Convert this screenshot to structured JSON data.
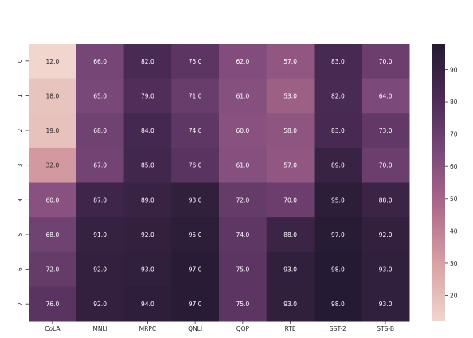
{
  "chart_data": {
    "type": "heatmap",
    "x_categories": [
      "CoLA",
      "MNLI",
      "MRPC",
      "QNLI",
      "QQP",
      "RTE",
      "SST-2",
      "STS-B"
    ],
    "y_categories": [
      "0",
      "1",
      "2",
      "3",
      "4",
      "5",
      "6",
      "7"
    ],
    "values": [
      [
        12.0,
        66.0,
        82.0,
        75.0,
        62.0,
        57.0,
        83.0,
        70.0
      ],
      [
        18.0,
        65.0,
        79.0,
        71.0,
        61.0,
        53.0,
        82.0,
        64.0
      ],
      [
        19.0,
        68.0,
        84.0,
        74.0,
        60.0,
        58.0,
        83.0,
        73.0
      ],
      [
        32.0,
        67.0,
        85.0,
        76.0,
        61.0,
        57.0,
        89.0,
        70.0
      ],
      [
        60.0,
        87.0,
        89.0,
        93.0,
        72.0,
        70.0,
        95.0,
        88.0
      ],
      [
        68.0,
        91.0,
        92.0,
        95.0,
        74.0,
        88.0,
        97.0,
        92.0
      ],
      [
        72.0,
        92.0,
        93.0,
        97.0,
        75.0,
        93.0,
        98.0,
        93.0
      ],
      [
        76.0,
        92.0,
        94.0,
        97.0,
        75.0,
        93.0,
        98.0,
        93.0
      ]
    ],
    "value_format": "0.0",
    "colorbar": {
      "vmin": 12.0,
      "vmax": 98.0,
      "ticks": [
        "20",
        "30",
        "40",
        "50",
        "60",
        "70",
        "80",
        "90"
      ],
      "colors": [
        "#f0d6cc",
        "#d9a3a4",
        "#b06d8c",
        "#7d4a7b",
        "#4c2b55",
        "#251a33"
      ]
    },
    "title": "",
    "xlabel": "",
    "ylabel": ""
  }
}
